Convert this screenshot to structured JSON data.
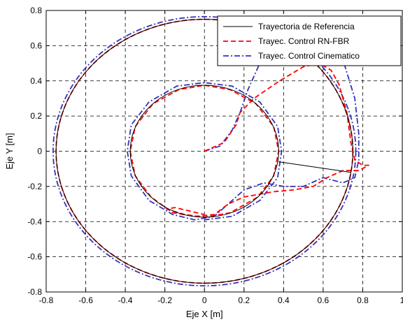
{
  "chart_data": {
    "type": "line",
    "xlabel": "Eje X [m]",
    "ylabel": "Eje Y [m]",
    "xlim": [
      -0.8,
      1.0
    ],
    "ylim": [
      -0.8,
      0.8
    ],
    "grid": true,
    "legend_position": "top-right",
    "xticks": [
      "-0.8",
      "-0.6",
      "-0.4",
      "-0.2",
      "0",
      "0.2",
      "0.4",
      "0.6",
      "0.8",
      "1"
    ],
    "yticks": [
      "-0.8",
      "-0.6",
      "-0.4",
      "-0.2",
      "0",
      "0.2",
      "0.4",
      "0.6",
      "0.8"
    ],
    "series": [
      {
        "name": "Trayectoria de Referencia",
        "color": "#000000",
        "dash": "solid",
        "path": [
          {
            "shape": "circle",
            "cx": 0,
            "cy": 0,
            "r": 0.375
          },
          {
            "shape": "line",
            "x": [
              0.375,
              0.74
            ],
            "y": [
              -0.06,
              -0.12
            ]
          },
          {
            "shape": "circle",
            "cx": 0,
            "cy": 0,
            "r": 0.75
          }
        ]
      },
      {
        "name": "Trayec. Control RN-FBR",
        "color": "#ff0000",
        "dash": "dashed",
        "points": [
          [
            0,
            0
          ],
          [
            0.1,
            0.05
          ],
          [
            0.16,
            0.15
          ],
          [
            0.18,
            0.22
          ],
          [
            0.25,
            0.3
          ],
          [
            0.38,
            0.4
          ],
          [
            0.5,
            0.48
          ],
          [
            0.58,
            0.5
          ],
          [
            0.64,
            0.46
          ],
          [
            0.68,
            0.38
          ],
          [
            0.72,
            0.22
          ],
          [
            0.74,
            0.05
          ],
          [
            0.76,
            -0.05
          ],
          [
            0.8,
            -0.08
          ],
          [
            0.83,
            -0.08
          ],
          [
            0.78,
            -0.11
          ],
          [
            0.7,
            -0.11
          ],
          [
            0.62,
            -0.15
          ],
          [
            0.55,
            -0.2
          ],
          [
            0.45,
            -0.22
          ],
          [
            0.35,
            -0.23
          ],
          [
            0.2,
            -0.26
          ],
          [
            0.12,
            -0.3
          ],
          [
            0.05,
            -0.36
          ],
          [
            -0.04,
            -0.37
          ],
          [
            -0.16,
            -0.35
          ],
          [
            -0.27,
            -0.26
          ],
          [
            -0.35,
            -0.14
          ],
          [
            -0.375,
            0
          ],
          [
            -0.35,
            0.14
          ],
          [
            -0.26,
            0.27
          ],
          [
            -0.13,
            0.35
          ],
          [
            0,
            0.375
          ],
          [
            0.13,
            0.35
          ],
          [
            0.26,
            0.27
          ],
          [
            0.35,
            0.14
          ],
          [
            0.375,
            0
          ],
          [
            0.35,
            -0.14
          ],
          [
            0.27,
            -0.26
          ],
          [
            0.13,
            -0.35
          ],
          [
            0,
            -0.375
          ],
          [
            -0.1,
            -0.36
          ],
          [
            -0.19,
            -0.33
          ],
          [
            -0.15,
            -0.32
          ],
          [
            0,
            -0.36
          ]
        ],
        "outer_circle": {
          "cx": 0,
          "cy": 0,
          "r": 0.75
        }
      },
      {
        "name": "Trayec. Control Cinematico",
        "color": "#3333bb",
        "dash": "dashdot",
        "points": [
          [
            0,
            0
          ],
          [
            0.08,
            0.03
          ],
          [
            0.14,
            0.12
          ],
          [
            0.18,
            0.22
          ],
          [
            0.22,
            0.35
          ],
          [
            0.28,
            0.5
          ],
          [
            0.34,
            0.6
          ],
          [
            0.4,
            0.66
          ],
          [
            0.5,
            0.7
          ],
          [
            0.62,
            0.64
          ],
          [
            0.7,
            0.52
          ],
          [
            0.76,
            0.3
          ],
          [
            0.78,
            0.1
          ],
          [
            0.78,
            -0.05
          ],
          [
            0.76,
            -0.15
          ],
          [
            0.7,
            -0.18
          ],
          [
            0.6,
            -0.15
          ],
          [
            0.5,
            -0.2
          ],
          [
            0.4,
            -0.2
          ],
          [
            0.3,
            -0.18
          ],
          [
            0.2,
            -0.22
          ],
          [
            0.12,
            -0.3
          ],
          [
            0.05,
            -0.37
          ],
          [
            -0.05,
            -0.39
          ],
          [
            -0.16,
            -0.36
          ],
          [
            -0.28,
            -0.28
          ],
          [
            -0.37,
            -0.14
          ],
          [
            -0.39,
            0
          ],
          [
            -0.37,
            0.15
          ],
          [
            -0.28,
            0.28
          ],
          [
            -0.14,
            0.37
          ],
          [
            0,
            0.39
          ],
          [
            0.14,
            0.37
          ],
          [
            0.28,
            0.28
          ],
          [
            0.37,
            0.14
          ],
          [
            0.39,
            0
          ],
          [
            0.37,
            -0.15
          ],
          [
            0.28,
            -0.28
          ],
          [
            0.14,
            -0.37
          ],
          [
            0,
            -0.39
          ]
        ],
        "outer_circle": {
          "cx": 0,
          "cy": 0,
          "r": 0.765
        }
      }
    ]
  }
}
